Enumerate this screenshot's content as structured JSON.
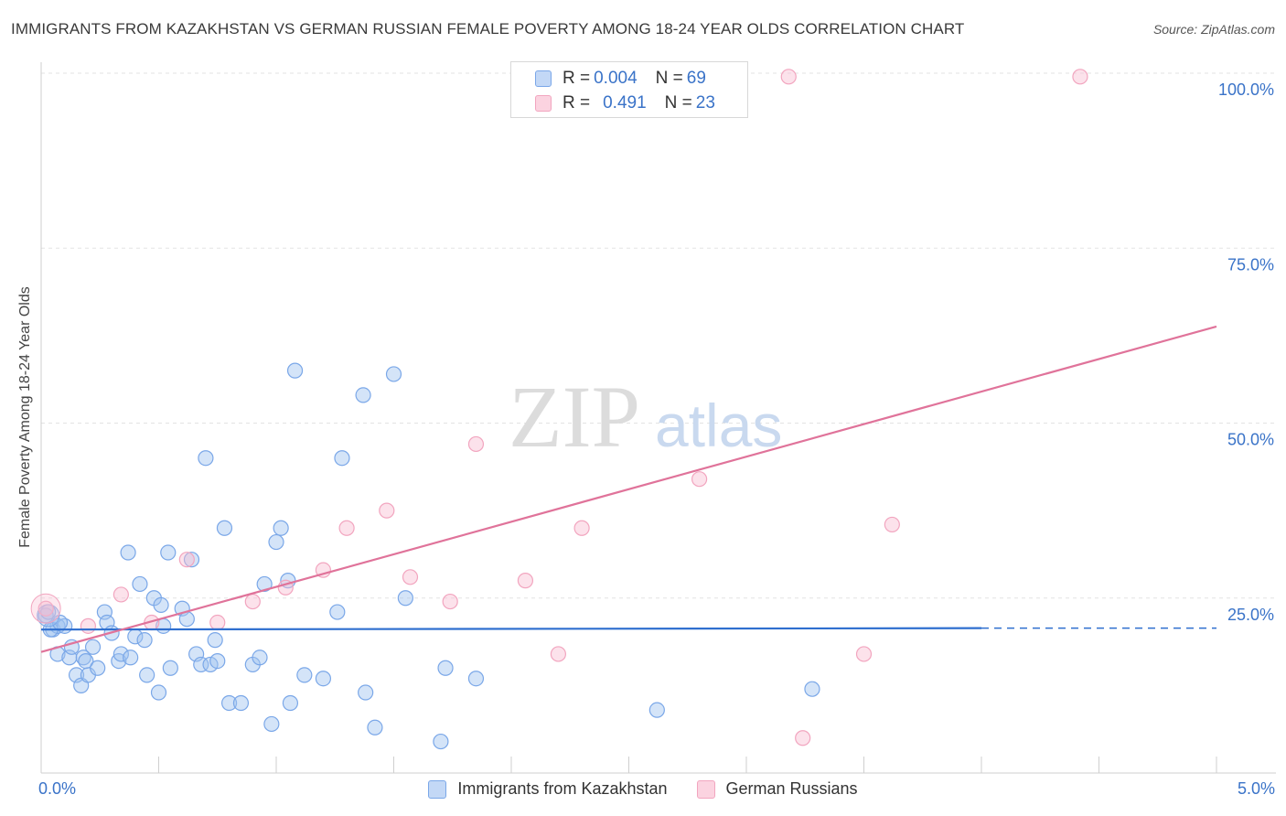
{
  "title": "IMMIGRANTS FROM KAZAKHSTAN VS GERMAN RUSSIAN FEMALE POVERTY AMONG 18-24 YEAR OLDS CORRELATION CHART",
  "source": "Source: ZipAtlas.com",
  "watermark": {
    "zip": "ZIP",
    "atlas": "atlas"
  },
  "legend_top": {
    "row1": {
      "r_label": "R = ",
      "r_value": "0.004",
      "n_label": "N = ",
      "n_value": "69"
    },
    "row2": {
      "r_label": "R = ",
      "r_value": "0.491",
      "n_label": "N = ",
      "n_value": "23"
    }
  },
  "chart_data": {
    "type": "scatter",
    "title": "IMMIGRANTS FROM KAZAKHSTAN VS GERMAN RUSSIAN FEMALE POVERTY AMONG 18-24 YEAR OLDS CORRELATION CHART",
    "xlabel": "",
    "ylabel": "Female Poverty Among 18-24 Year Olds",
    "xlim": [
      0,
      5
    ],
    "ylim": [
      0,
      100
    ],
    "x_tick_labels": {
      "min": "0.0%",
      "max": "5.0%"
    },
    "y_ticks": [
      25,
      50,
      75,
      100
    ],
    "y_tick_labels": [
      "25.0%",
      "50.0%",
      "75.0%",
      "100.0%"
    ],
    "grid": true,
    "colors": {
      "kazakhstan": "#7aa7e8",
      "kazakhstan_line": "#2f6fcf",
      "german_russian": "#f2a5bf",
      "german_russian_line": "#e0739a",
      "tick_text": "#3a73c8"
    },
    "series": [
      {
        "name": "Immigrants from Kazakhstan",
        "r": 0.004,
        "n": 69,
        "trend": {
          "x0": 0,
          "y0": 20.5,
          "x1": 4.0,
          "y1": 20.7,
          "dashed_to": 5.0
        },
        "points": [
          [
            0.02,
            22.5
          ],
          [
            0.05,
            20.5
          ],
          [
            0.07,
            21
          ],
          [
            0.1,
            21
          ],
          [
            0.07,
            17
          ],
          [
            0.12,
            16.5
          ],
          [
            0.13,
            18
          ],
          [
            0.15,
            14
          ],
          [
            0.17,
            12.5
          ],
          [
            0.18,
            16.5
          ],
          [
            0.2,
            14
          ],
          [
            0.19,
            16
          ],
          [
            0.22,
            18
          ],
          [
            0.24,
            15
          ],
          [
            0.27,
            23
          ],
          [
            0.28,
            21.5
          ],
          [
            0.3,
            20
          ],
          [
            0.33,
            16
          ],
          [
            0.34,
            17
          ],
          [
            0.37,
            31.5
          ],
          [
            0.38,
            16.5
          ],
          [
            0.4,
            19.5
          ],
          [
            0.42,
            27
          ],
          [
            0.44,
            19
          ],
          [
            0.45,
            14
          ],
          [
            0.48,
            25
          ],
          [
            0.5,
            11.5
          ],
          [
            0.51,
            24
          ],
          [
            0.52,
            21
          ],
          [
            0.54,
            31.5
          ],
          [
            0.55,
            15
          ],
          [
            0.6,
            23.5
          ],
          [
            0.62,
            22
          ],
          [
            0.64,
            30.5
          ],
          [
            0.66,
            17
          ],
          [
            0.68,
            15.5
          ],
          [
            0.7,
            45
          ],
          [
            0.72,
            15.5
          ],
          [
            0.74,
            19
          ],
          [
            0.75,
            16
          ],
          [
            0.78,
            35
          ],
          [
            0.8,
            10
          ],
          [
            0.85,
            10
          ],
          [
            0.9,
            15.5
          ],
          [
            0.93,
            16.5
          ],
          [
            0.95,
            27
          ],
          [
            0.98,
            7
          ],
          [
            1.0,
            33
          ],
          [
            1.02,
            35
          ],
          [
            1.05,
            27.5
          ],
          [
            1.06,
            10
          ],
          [
            1.08,
            57.5
          ],
          [
            1.12,
            14
          ],
          [
            1.2,
            13.5
          ],
          [
            1.26,
            23
          ],
          [
            1.28,
            45
          ],
          [
            1.37,
            54
          ],
          [
            1.38,
            11.5
          ],
          [
            1.42,
            6.5
          ],
          [
            1.5,
            57
          ],
          [
            1.55,
            25
          ],
          [
            1.7,
            4.5
          ],
          [
            1.72,
            15
          ],
          [
            1.85,
            13.5
          ],
          [
            3.28,
            12
          ],
          [
            2.62,
            9
          ],
          [
            0.04,
            20.5
          ],
          [
            0.08,
            21.5
          ],
          [
            0.03,
            23
          ]
        ]
      },
      {
        "name": "German Russians",
        "r": 0.491,
        "n": 23,
        "trend": {
          "x0": 0,
          "y0": 17.3,
          "x1": 5.0,
          "y1": 63.8
        },
        "points": [
          [
            0.02,
            23.5
          ],
          [
            0.2,
            21
          ],
          [
            0.34,
            25.5
          ],
          [
            0.47,
            21.5
          ],
          [
            0.62,
            30.5
          ],
          [
            0.75,
            21.5
          ],
          [
            0.9,
            24.5
          ],
          [
            1.04,
            26.5
          ],
          [
            1.2,
            29
          ],
          [
            1.3,
            35
          ],
          [
            1.47,
            37.5
          ],
          [
            1.57,
            28
          ],
          [
            1.74,
            24.5
          ],
          [
            1.85,
            47
          ],
          [
            2.06,
            27.5
          ],
          [
            2.2,
            17
          ],
          [
            2.3,
            35
          ],
          [
            2.8,
            42
          ],
          [
            3.18,
            99.5
          ],
          [
            3.24,
            5
          ],
          [
            3.5,
            17
          ],
          [
            3.62,
            35.5
          ],
          [
            4.42,
            99.5
          ]
        ]
      }
    ]
  },
  "bottom_legend": {
    "item1": "Immigrants from Kazakhstan",
    "item2": "German Russians"
  }
}
